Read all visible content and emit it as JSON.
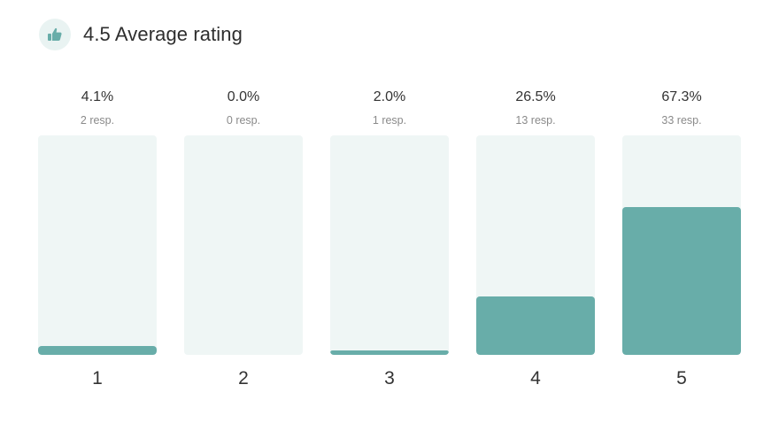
{
  "header": {
    "title": "4.5 Average rating",
    "icon": "thumbs-up-icon"
  },
  "colors": {
    "accent": "#68ada9",
    "track": "#eff6f5",
    "icon_bg": "#e9f3f2"
  },
  "chart_data": {
    "type": "bar",
    "title": "4.5 Average rating",
    "categories": [
      "1",
      "2",
      "3",
      "4",
      "5"
    ],
    "values": [
      4.1,
      0.0,
      2.0,
      26.5,
      67.3
    ],
    "percent_labels": [
      "4.1%",
      "0.0%",
      "2.0%",
      "26.5%",
      "67.3%"
    ],
    "response_labels": [
      "2 resp.",
      "0 resp.",
      "1 resp.",
      "13 resp.",
      "33 resp."
    ],
    "responses": [
      2,
      0,
      1,
      13,
      33
    ],
    "ylim": [
      0,
      100
    ],
    "grid": false,
    "xlabel": "",
    "ylabel": ""
  }
}
